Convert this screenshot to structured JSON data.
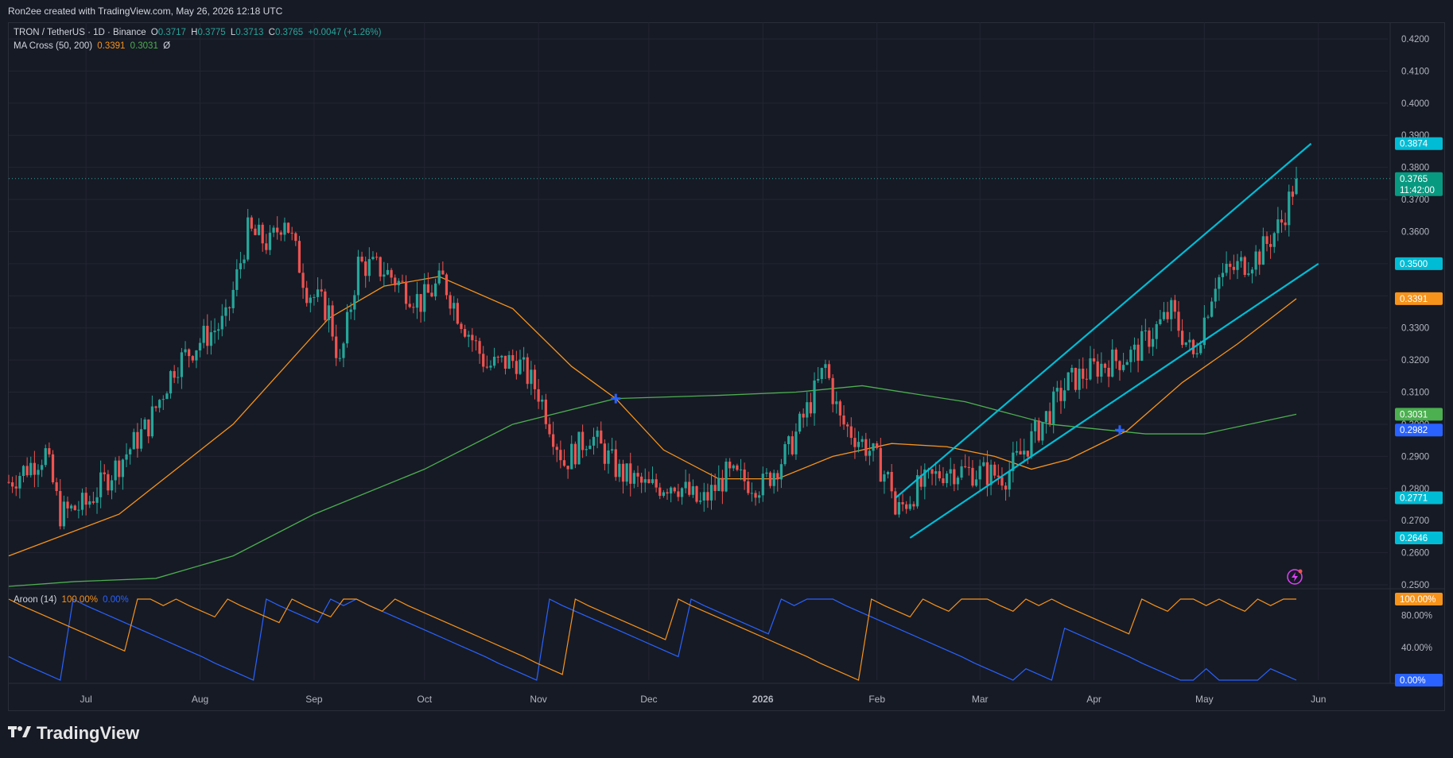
{
  "header": {
    "text": "Ron2ee created with TradingView.com, May 26, 2026 12:18 UTC"
  },
  "legend": {
    "symbol": "TRON / TetherUS · 1D · Binance",
    "open_label": "O",
    "open": "0.3717",
    "high_label": "H",
    "high": "0.3775",
    "low_label": "L",
    "low": "0.3713",
    "close_label": "C",
    "close": "0.3765",
    "change": "+0.0047 (+1.26%)",
    "ma_name": "MA Cross (50, 200)",
    "ma50": "0.3391",
    "ma200": "0.3031",
    "ma_extra": "Ø",
    "aroon_name": "Aroon (14)",
    "aroon_up": "100.00%",
    "aroon_down": "0.00%"
  },
  "price_axis_ticks": [
    "0.4200",
    "0.4100",
    "0.4000",
    "0.3900",
    "0.3800",
    "0.3700",
    "0.3600",
    "0.3500",
    "0.3400",
    "0.3300",
    "0.3200",
    "0.3100",
    "0.3000",
    "0.2900",
    "0.2800",
    "0.2700",
    "0.2600",
    "0.2500"
  ],
  "price_badges": [
    {
      "value": 0.3874,
      "label": "0.3874",
      "color": "#00bcd4"
    },
    {
      "value": 0.3765,
      "label": "0.3765",
      "sublabel": "11:42:00",
      "color": "#089981"
    },
    {
      "value": 0.35,
      "label": "0.3500",
      "color": "#00bcd4"
    },
    {
      "value": 0.3391,
      "label": "0.3391",
      "color": "#f7931a"
    },
    {
      "value": 0.3031,
      "label": "0.3031",
      "color": "#4caf50"
    },
    {
      "value": 0.2982,
      "label": "0.2982",
      "color": "#2962ff"
    },
    {
      "value": 0.2771,
      "label": "0.2771",
      "color": "#00bcd4"
    },
    {
      "value": 0.2646,
      "label": "0.2646",
      "color": "#00bcd4"
    }
  ],
  "osc_axis_ticks": [
    "80.00%",
    "40.00%"
  ],
  "osc_badges": [
    {
      "value": 100,
      "label": "100.00%",
      "color": "#f7931a"
    },
    {
      "value": 0,
      "label": "0.00%",
      "color": "#2962ff"
    }
  ],
  "time_labels": [
    "Jul",
    "Aug",
    "Sep",
    "Oct",
    "Nov",
    "Dec",
    "2026",
    "Feb",
    "Mar",
    "Apr",
    "May",
    "Jun"
  ],
  "colors": {
    "up": "#26a69a",
    "down": "#ef5350",
    "ma50": "#f7931a",
    "ma200": "#4caf50",
    "channel": "#00bcd4",
    "aroon_up": "#f7931a",
    "aroon_down": "#2962ff",
    "grid": "#232632",
    "background": "#161a25"
  },
  "icons": [
    "lightning-icon",
    "tradingview-logo-icon"
  ],
  "brand": "TradingView",
  "chart_data": {
    "type": "candlestick",
    "symbol": "TRON / TetherUS",
    "interval": "1D",
    "exchange": "Binance",
    "date_range": [
      "2025-06-10",
      "2026-05-26"
    ],
    "price_range": [
      0.25,
      0.425
    ],
    "grid": true,
    "last_candle": {
      "open": 0.3717,
      "high": 0.3775,
      "low": 0.3713,
      "close": 0.3765
    },
    "close_path": [
      [
        "2025-06-10",
        0.282
      ],
      [
        "2025-06-20",
        0.291
      ],
      [
        "2025-06-24",
        0.272
      ],
      [
        "2025-07-01",
        0.275
      ],
      [
        "2025-07-10",
        0.288
      ],
      [
        "2025-07-18",
        0.3
      ],
      [
        "2025-07-25",
        0.318
      ],
      [
        "2025-08-02",
        0.327
      ],
      [
        "2025-08-08",
        0.332
      ],
      [
        "2025-08-14",
        0.36
      ],
      [
        "2025-08-20",
        0.356
      ],
      [
        "2025-08-24",
        0.365
      ],
      [
        "2025-08-30",
        0.342
      ],
      [
        "2025-09-05",
        0.335
      ],
      [
        "2025-09-08",
        0.318
      ],
      [
        "2025-09-13",
        0.35
      ],
      [
        "2025-09-20",
        0.348
      ],
      [
        "2025-09-30",
        0.338
      ],
      [
        "2025-10-06",
        0.345
      ],
      [
        "2025-10-10",
        0.335
      ],
      [
        "2025-10-18",
        0.318
      ],
      [
        "2025-10-26",
        0.32
      ],
      [
        "2025-11-01",
        0.31
      ],
      [
        "2025-11-08",
        0.288
      ],
      [
        "2025-11-15",
        0.297
      ],
      [
        "2025-11-23",
        0.285
      ],
      [
        "2025-12-01",
        0.28
      ],
      [
        "2025-12-08",
        0.282
      ],
      [
        "2025-12-15",
        0.275
      ],
      [
        "2025-12-22",
        0.284
      ],
      [
        "2026-01-01",
        0.281
      ],
      [
        "2026-01-08",
        0.292
      ],
      [
        "2026-01-14",
        0.307
      ],
      [
        "2026-01-18",
        0.318
      ],
      [
        "2026-01-22",
        0.301
      ],
      [
        "2026-01-30",
        0.292
      ],
      [
        "2026-02-05",
        0.281
      ],
      [
        "2026-02-06",
        0.272
      ],
      [
        "2026-02-12",
        0.28
      ],
      [
        "2026-02-20",
        0.286
      ],
      [
        "2026-02-28",
        0.285
      ],
      [
        "2026-03-08",
        0.284
      ],
      [
        "2026-03-16",
        0.297
      ],
      [
        "2026-03-25",
        0.313
      ],
      [
        "2026-04-02",
        0.318
      ],
      [
        "2026-04-12",
        0.322
      ],
      [
        "2026-04-18",
        0.33
      ],
      [
        "2026-04-22",
        0.335
      ],
      [
        "2026-04-28",
        0.321
      ],
      [
        "2026-05-04",
        0.345
      ],
      [
        "2026-05-10",
        0.349
      ],
      [
        "2026-05-16",
        0.353
      ],
      [
        "2026-05-22",
        0.363
      ],
      [
        "2026-05-26",
        0.3765
      ]
    ],
    "ma50": [
      [
        "2025-06-10",
        0.259
      ],
      [
        "2025-07-10",
        0.272
      ],
      [
        "2025-08-10",
        0.3
      ],
      [
        "2025-09-05",
        0.333
      ],
      [
        "2025-09-20",
        0.343
      ],
      [
        "2025-10-05",
        0.346
      ],
      [
        "2025-10-25",
        0.336
      ],
      [
        "2025-11-10",
        0.318
      ],
      [
        "2025-11-22",
        0.308
      ],
      [
        "2025-12-05",
        0.292
      ],
      [
        "2025-12-20",
        0.283
      ],
      [
        "2026-01-05",
        0.283
      ],
      [
        "2026-01-20",
        0.29
      ],
      [
        "2026-02-05",
        0.294
      ],
      [
        "2026-02-20",
        0.293
      ],
      [
        "2026-03-05",
        0.29
      ],
      [
        "2026-03-15",
        0.286
      ],
      [
        "2026-03-25",
        0.289
      ],
      [
        "2026-04-10",
        0.298
      ],
      [
        "2026-04-25",
        0.313
      ],
      [
        "2026-05-10",
        0.325
      ],
      [
        "2026-05-26",
        0.3391
      ]
    ],
    "ma200": [
      [
        "2025-06-10",
        0.2495
      ],
      [
        "2025-06-28",
        0.251
      ],
      [
        "2025-07-20",
        0.252
      ],
      [
        "2025-08-10",
        0.259
      ],
      [
        "2025-09-01",
        0.272
      ],
      [
        "2025-10-01",
        0.286
      ],
      [
        "2025-10-25",
        0.3
      ],
      [
        "2025-11-22",
        0.308
      ],
      [
        "2025-12-20",
        0.309
      ],
      [
        "2026-01-10",
        0.31
      ],
      [
        "2026-01-28",
        0.312
      ],
      [
        "2026-02-25",
        0.307
      ],
      [
        "2026-03-20",
        0.3
      ],
      [
        "2026-04-15",
        0.297
      ],
      [
        "2026-05-01",
        0.297
      ],
      [
        "2026-05-26",
        0.3031
      ]
    ],
    "ma_crosses": [
      {
        "date": "2025-11-22",
        "price": 0.308
      },
      {
        "date": "2026-04-08",
        "price": 0.2982
      }
    ],
    "channel": {
      "upper": [
        [
          "2026-02-06",
          0.277
        ],
        [
          "2026-05-30",
          0.3874
        ]
      ],
      "lower": [
        [
          "2026-02-10",
          0.2646
        ],
        [
          "2026-06-01",
          0.35
        ]
      ]
    },
    "aroon": {
      "name": "Aroon (14)",
      "range": [
        0,
        100
      ],
      "up_last": 100,
      "down_last": 0,
      "up": [
        100,
        92,
        85,
        78,
        71,
        64,
        57,
        50,
        43,
        36,
        100,
        100,
        92,
        100,
        92,
        85,
        78,
        100,
        92,
        85,
        78,
        71,
        100,
        92,
        85,
        78,
        100,
        100,
        92,
        85,
        100,
        92,
        85,
        78,
        71,
        64,
        57,
        50,
        43,
        36,
        29,
        21,
        14,
        7,
        100,
        92,
        85,
        78,
        71,
        64,
        57,
        50,
        100,
        92,
        85,
        78,
        71,
        64,
        57,
        50,
        43,
        36,
        29,
        21,
        14,
        7,
        0,
        100,
        92,
        85,
        78,
        100,
        92,
        85,
        100,
        100,
        100,
        92,
        85,
        100,
        92,
        100,
        92,
        85,
        78,
        71,
        64,
        57,
        100,
        92,
        85,
        100,
        100,
        92,
        100,
        92,
        85,
        100,
        92,
        100,
        100
      ],
      "down": [
        29,
        21,
        14,
        7,
        0,
        100,
        92,
        85,
        78,
        71,
        64,
        57,
        50,
        43,
        36,
        29,
        21,
        14,
        7,
        0,
        100,
        92,
        85,
        78,
        71,
        100,
        92,
        100,
        92,
        85,
        78,
        71,
        64,
        57,
        50,
        43,
        36,
        29,
        21,
        14,
        7,
        0,
        100,
        92,
        85,
        78,
        71,
        64,
        57,
        50,
        43,
        36,
        29,
        100,
        92,
        85,
        78,
        71,
        64,
        57,
        100,
        92,
        100,
        100,
        100,
        92,
        85,
        78,
        71,
        64,
        57,
        50,
        43,
        36,
        29,
        21,
        14,
        7,
        0,
        14,
        7,
        0,
        64,
        57,
        50,
        43,
        36,
        29,
        21,
        14,
        7,
        0,
        0,
        14,
        0,
        0,
        0,
        0,
        14,
        7,
        0
      ]
    }
  }
}
